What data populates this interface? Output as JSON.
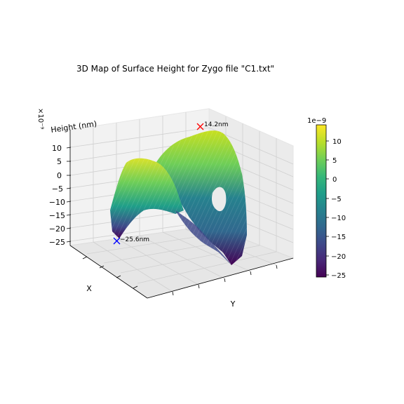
{
  "chart_data": {
    "type": "surface3d",
    "title": "3D Map of Surface Height for Zygo file \"C1.txt\"",
    "zlabel": "Height (nm)",
    "zlabel_multiplier": "×10⁻⁹",
    "xlabel": "X",
    "ylabel": "Y",
    "zticks": [
      "10",
      "5",
      "0",
      "−5",
      "−10",
      "−15",
      "−20",
      "−25"
    ],
    "zlim": [
      -25.6,
      14.2
    ],
    "colormap": "viridis",
    "colorbar": {
      "offset_label": "1e−9",
      "ticks": [
        "10",
        "5",
        "0",
        "−5",
        "−10",
        "−15",
        "−20",
        "−25"
      ]
    },
    "max_marker": {
      "label": "14.2nm",
      "value": 14.2,
      "color": "#ff0000"
    },
    "min_marker": {
      "label": "−25.6nm",
      "value": -25.6,
      "color": "#0000ff"
    },
    "surface_description": "saddle-shaped height map: two high ridges (yellow-green) at front-left and back-center, low valley (purple) front-center and right, with a hole (missing data) near the center-right"
  },
  "colors": {
    "viridis": [
      "#440154",
      "#482878",
      "#3e4989",
      "#31688e",
      "#26828e",
      "#1f9e89",
      "#35b779",
      "#6ece58",
      "#b5de2b",
      "#fde725"
    ],
    "pane": "#f2f2f2",
    "grid": "#d0d0d0",
    "axis": "#000000"
  }
}
